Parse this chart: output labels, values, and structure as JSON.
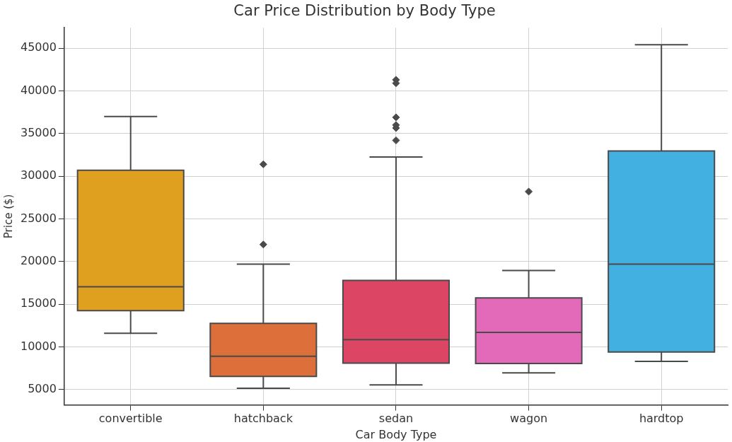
{
  "chart_data": {
    "type": "box",
    "title": "Car Price Distribution by Body Type",
    "xlabel": "Car Body Type",
    "ylabel": "Price ($)",
    "categories": [
      "convertible",
      "hatchback",
      "sedan",
      "wagon",
      "hardtop"
    ],
    "colors": [
      "#dfa020",
      "#dc6f3a",
      "#dc4664",
      "#e36ab9",
      "#42b0e0"
    ],
    "boxes": [
      {
        "low": 11600,
        "q1": 14250,
        "median": 17050,
        "q3": 30700,
        "high": 37000
      },
      {
        "low": 5150,
        "q1": 6550,
        "median": 8900,
        "q3": 12750,
        "high": 19700,
        "outliers": [
          22000,
          31400
        ]
      },
      {
        "low": 5550,
        "q1": 8100,
        "median": 10850,
        "q3": 17800,
        "high": 32250,
        "outliers": [
          34200,
          35650,
          36000,
          36900,
          40900,
          41300
        ]
      },
      {
        "low": 6950,
        "q1": 8050,
        "median": 11700,
        "q3": 15750,
        "high": 18950,
        "outliers": [
          28200
        ]
      },
      {
        "low": 8300,
        "q1": 9400,
        "median": 19700,
        "q3": 32950,
        "high": 45400
      }
    ],
    "ylim": [
      3200,
      47400
    ],
    "yticks": [
      5000,
      10000,
      15000,
      20000,
      25000,
      30000,
      35000,
      40000,
      45000
    ],
    "grid": true,
    "legend": false
  }
}
